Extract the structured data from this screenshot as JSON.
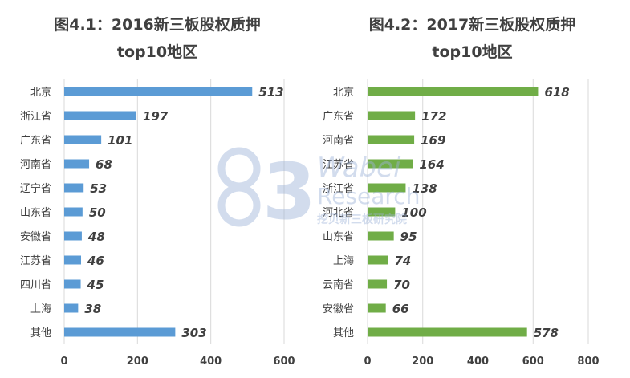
{
  "chart_data": [
    {
      "type": "bar",
      "title_line1": "图4.1：2016新三板股权质押",
      "title_line2": "top10地区",
      "categories": [
        "北京",
        "浙江省",
        "广东省",
        "河南省",
        "辽宁省",
        "山东省",
        "安徽省",
        "江苏省",
        "四川省",
        "上海",
        "其他"
      ],
      "values": [
        513,
        197,
        101,
        68,
        53,
        50,
        48,
        46,
        45,
        38,
        303
      ],
      "xlim": [
        0,
        600
      ],
      "ticks": [
        0,
        200,
        400,
        600
      ],
      "color": "#5b9bd5",
      "grid": true
    },
    {
      "type": "bar",
      "title_line1": "图4.2：2017新三板股权质押",
      "title_line2": "top10地区",
      "categories": [
        "北京",
        "广东省",
        "河南省",
        "江苏省",
        "浙江省",
        "河北省",
        "山东省",
        "上海",
        "云南省",
        "安徽省",
        "其他"
      ],
      "values": [
        618,
        172,
        169,
        164,
        138,
        100,
        95,
        74,
        70,
        66,
        578
      ],
      "xlim": [
        0,
        800
      ],
      "ticks": [
        0,
        200,
        400,
        600,
        800
      ],
      "color": "#70ad47",
      "grid": true
    }
  ],
  "watermark": {
    "line1": "Wabei",
    "line2": "Research",
    "line3": "挖贝新三板研究院",
    "logo_digit": "3",
    "color": "#9db3d8"
  }
}
